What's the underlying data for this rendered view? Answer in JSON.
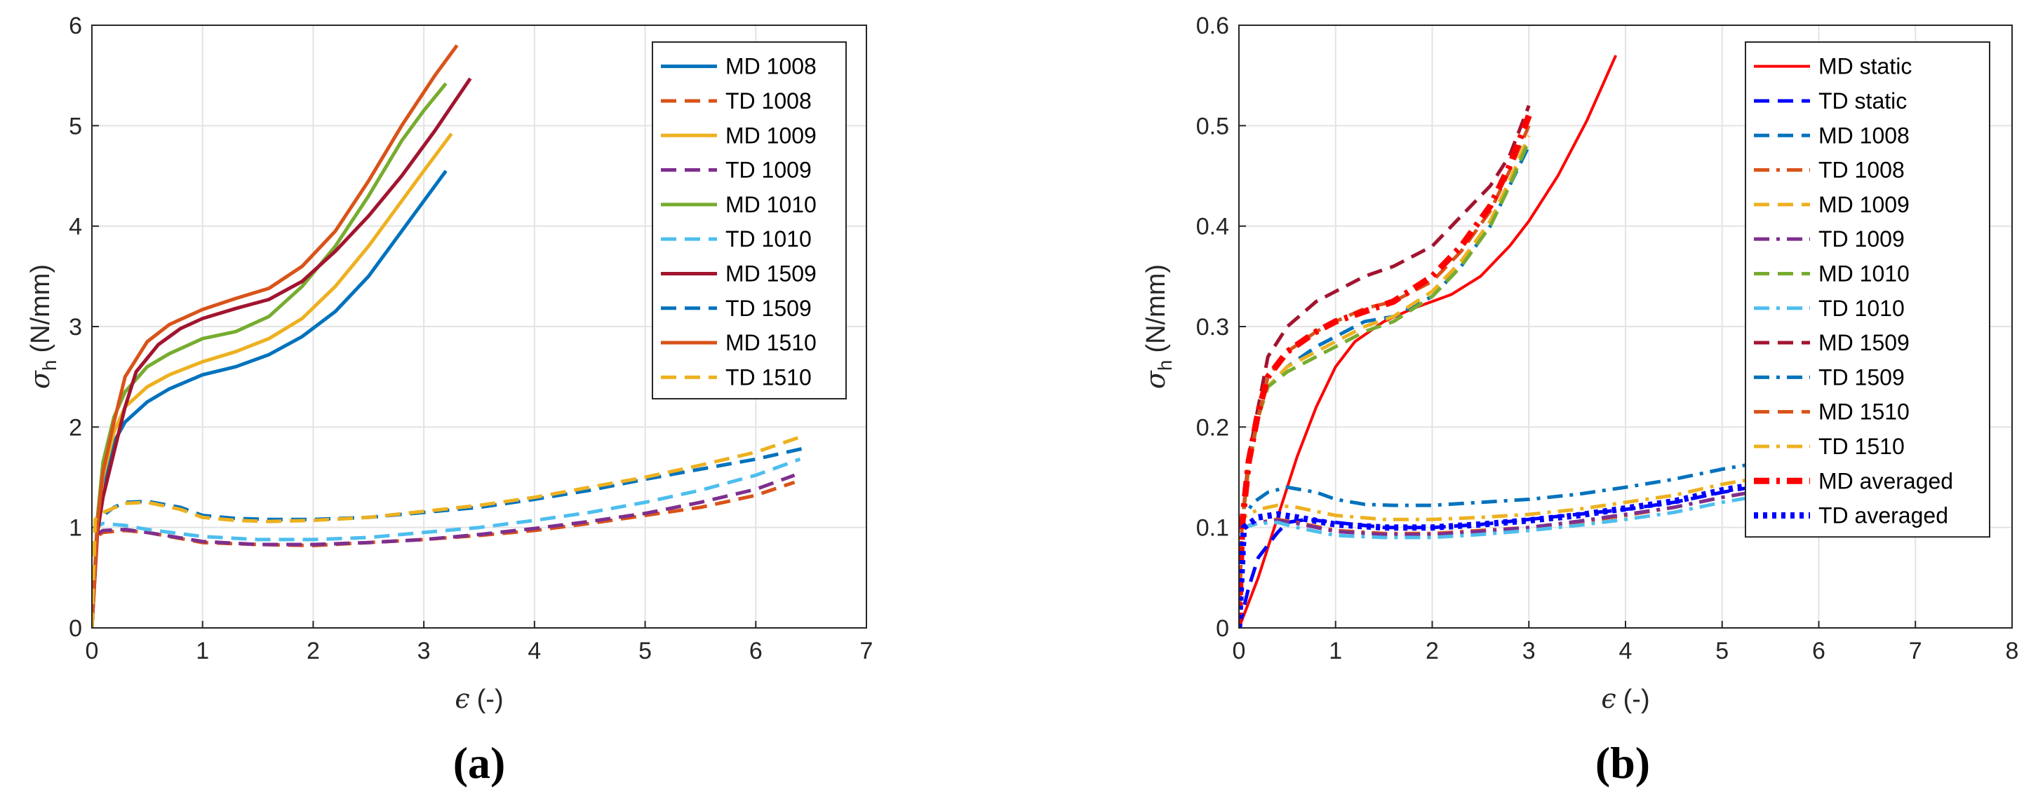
{
  "chart_data": [
    {
      "type": "line",
      "panel_label": "(a)",
      "xlabel_symbol": "ϵ",
      "xlabel_unit": "(-)",
      "ylabel_symbol": "σ",
      "ylabel_subscript": "h",
      "ylabel_unit": "(N/mm)",
      "xlim": [
        0,
        7
      ],
      "ylim": [
        0,
        6
      ],
      "xticks": [
        "0",
        "1",
        "2",
        "3",
        "4",
        "5",
        "6",
        "7"
      ],
      "yticks": [
        "0",
        "1",
        "2",
        "3",
        "4",
        "5",
        "6"
      ],
      "grid": true,
      "legend_position": "top-right",
      "series": [
        {
          "name": "MD 1008",
          "color": "#0072BD",
          "dash": "solid",
          "x": [
            0,
            0.05,
            0.1,
            0.2,
            0.3,
            0.5,
            0.7,
            1.0,
            1.3,
            1.6,
            1.9,
            2.2,
            2.5,
            2.8,
            3.0,
            3.2
          ],
          "y": [
            0,
            1.0,
            1.4,
            1.85,
            2.05,
            2.25,
            2.38,
            2.52,
            2.6,
            2.72,
            2.9,
            3.15,
            3.5,
            3.95,
            4.25,
            4.55
          ]
        },
        {
          "name": "TD 1008",
          "color": "#D95319",
          "dash": "dash",
          "x": [
            0,
            0.03,
            0.1,
            0.3,
            0.5,
            1.0,
            1.5,
            2.0,
            2.5,
            3.0,
            3.5,
            4.0,
            4.5,
            5.0,
            5.5,
            6.0,
            6.35
          ],
          "y": [
            0,
            0.9,
            0.95,
            0.97,
            0.95,
            0.85,
            0.83,
            0.82,
            0.85,
            0.88,
            0.92,
            0.97,
            1.04,
            1.12,
            1.2,
            1.32,
            1.45
          ]
        },
        {
          "name": "MD 1009",
          "color": "#EDB120",
          "dash": "solid",
          "x": [
            0,
            0.05,
            0.1,
            0.2,
            0.3,
            0.5,
            0.7,
            1.0,
            1.3,
            1.6,
            1.9,
            2.2,
            2.5,
            2.8,
            3.0,
            3.25
          ],
          "y": [
            0,
            1.05,
            1.5,
            1.95,
            2.2,
            2.4,
            2.52,
            2.65,
            2.75,
            2.88,
            3.08,
            3.4,
            3.8,
            4.25,
            4.55,
            4.92
          ]
        },
        {
          "name": "TD 1009",
          "color": "#7E2F8E",
          "dash": "dash",
          "x": [
            0,
            0.03,
            0.1,
            0.3,
            0.5,
            1.0,
            1.5,
            2.0,
            2.5,
            3.0,
            3.5,
            4.0,
            4.5,
            5.0,
            5.5,
            6.0,
            6.35
          ],
          "y": [
            0,
            0.92,
            0.97,
            0.98,
            0.95,
            0.86,
            0.83,
            0.83,
            0.85,
            0.88,
            0.93,
            0.99,
            1.06,
            1.14,
            1.25,
            1.38,
            1.52
          ]
        },
        {
          "name": "MD 1010",
          "color": "#77AC30",
          "dash": "solid",
          "x": [
            0,
            0.05,
            0.1,
            0.2,
            0.3,
            0.5,
            0.7,
            1.0,
            1.3,
            1.6,
            1.9,
            2.2,
            2.5,
            2.8,
            3.0,
            3.2
          ],
          "y": [
            0,
            1.1,
            1.65,
            2.1,
            2.35,
            2.6,
            2.73,
            2.88,
            2.95,
            3.1,
            3.4,
            3.8,
            4.3,
            4.85,
            5.15,
            5.42
          ]
        },
        {
          "name": "TD 1010",
          "color": "#4DBEEE",
          "dash": "dash",
          "x": [
            0,
            0.03,
            0.1,
            0.3,
            0.5,
            1.0,
            1.5,
            2.0,
            2.5,
            3.0,
            3.5,
            4.0,
            4.5,
            5.0,
            5.5,
            6.0,
            6.4
          ],
          "y": [
            0,
            1.0,
            1.04,
            1.02,
            0.98,
            0.91,
            0.88,
            0.88,
            0.9,
            0.95,
            1.0,
            1.07,
            1.15,
            1.25,
            1.37,
            1.52,
            1.68
          ]
        },
        {
          "name": "MD 1509",
          "color": "#A2142F",
          "dash": "solid",
          "x": [
            0,
            0.05,
            0.1,
            0.2,
            0.3,
            0.4,
            0.6,
            0.8,
            1.0,
            1.3,
            1.6,
            1.9,
            2.2,
            2.5,
            2.8,
            3.1,
            3.42
          ],
          "y": [
            0,
            0.95,
            1.3,
            1.75,
            2.2,
            2.55,
            2.82,
            2.98,
            3.08,
            3.18,
            3.27,
            3.45,
            3.75,
            4.1,
            4.5,
            4.95,
            5.47
          ]
        },
        {
          "name": "TD 1509",
          "color": "#0072BD",
          "dash": "dash",
          "x": [
            0,
            0.03,
            0.1,
            0.2,
            0.3,
            0.5,
            0.8,
            1.0,
            1.3,
            1.6,
            2.0,
            2.5,
            3.0,
            3.5,
            4.0,
            4.5,
            5.0,
            5.5,
            6.0,
            6.48
          ],
          "y": [
            0,
            1.05,
            1.12,
            1.2,
            1.25,
            1.26,
            1.2,
            1.12,
            1.09,
            1.08,
            1.08,
            1.1,
            1.15,
            1.2,
            1.28,
            1.37,
            1.48,
            1.58,
            1.68,
            1.8
          ]
        },
        {
          "name": "MD 1510",
          "color": "#D95319",
          "dash": "solid",
          "x": [
            0,
            0.05,
            0.1,
            0.2,
            0.3,
            0.5,
            0.7,
            1.0,
            1.3,
            1.6,
            1.9,
            2.2,
            2.5,
            2.8,
            3.1,
            3.3
          ],
          "y": [
            0,
            1.05,
            1.55,
            2.05,
            2.5,
            2.85,
            3.02,
            3.17,
            3.28,
            3.38,
            3.6,
            3.95,
            4.45,
            5.0,
            5.5,
            5.8
          ]
        },
        {
          "name": "TD 1510",
          "color": "#EDB120",
          "dash": "dash",
          "x": [
            0,
            0.03,
            0.1,
            0.3,
            0.5,
            0.8,
            1.0,
            1.3,
            1.6,
            2.0,
            2.5,
            3.0,
            3.5,
            4.0,
            4.5,
            5.0,
            5.5,
            6.0,
            6.4
          ],
          "y": [
            0,
            1.08,
            1.15,
            1.24,
            1.25,
            1.18,
            1.1,
            1.07,
            1.06,
            1.07,
            1.1,
            1.16,
            1.22,
            1.3,
            1.4,
            1.5,
            1.62,
            1.75,
            1.9
          ]
        }
      ]
    },
    {
      "type": "line",
      "panel_label": "(b)",
      "xlabel_symbol": "ϵ",
      "xlabel_unit": "(-)",
      "ylabel_symbol": "σ",
      "ylabel_subscript": "h",
      "ylabel_unit": "(N/mm)",
      "xlim": [
        0,
        8
      ],
      "ylim": [
        0,
        0.6
      ],
      "xticks": [
        "0",
        "1",
        "2",
        "3",
        "4",
        "5",
        "6",
        "7",
        "8"
      ],
      "yticks": [
        "0",
        "0.1",
        "0.2",
        "0.3",
        "0.4",
        "0.5",
        "0.6"
      ],
      "grid": true,
      "legend_position": "top-right",
      "series": [
        {
          "name": "MD static",
          "color": "#FF0000",
          "dash": "solid",
          "width": 4,
          "x": [
            0,
            0.2,
            0.4,
            0.6,
            0.8,
            1.0,
            1.2,
            1.5,
            1.8,
            2.0,
            2.2,
            2.5,
            2.8,
            3.0,
            3.3,
            3.6,
            3.9
          ],
          "y": [
            0,
            0.05,
            0.11,
            0.17,
            0.22,
            0.26,
            0.285,
            0.305,
            0.318,
            0.325,
            0.332,
            0.35,
            0.38,
            0.405,
            0.45,
            0.505,
            0.57
          ]
        },
        {
          "name": "TD static",
          "color": "#0000FF",
          "dash": "dash",
          "width": 5,
          "x": [
            0,
            0.1,
            0.2,
            0.4,
            0.5,
            0.7,
            1.0,
            1.5,
            2.0,
            2.5,
            3.0,
            3.5,
            4.0,
            4.5,
            5.0,
            5.3
          ],
          "y": [
            0,
            0.04,
            0.07,
            0.095,
            0.105,
            0.108,
            0.105,
            0.1,
            0.1,
            0.103,
            0.108,
            0.113,
            0.118,
            0.125,
            0.135,
            0.14
          ]
        },
        {
          "name": "MD 1008",
          "color": "#0072BD",
          "dash": "dash",
          "width": 5,
          "x": [
            0,
            0.03,
            0.1,
            0.2,
            0.3,
            0.5,
            0.8,
            1.0,
            1.3,
            1.6,
            2.0,
            2.3,
            2.6,
            2.8,
            3.0
          ],
          "y": [
            0,
            0.1,
            0.16,
            0.21,
            0.24,
            0.26,
            0.28,
            0.29,
            0.305,
            0.31,
            0.33,
            0.36,
            0.4,
            0.44,
            0.48
          ]
        },
        {
          "name": "TD 1008",
          "color": "#D95319",
          "dash": "dashdot",
          "width": 5,
          "x": [
            0,
            0.05,
            0.2,
            0.4,
            0.6,
            1.0,
            1.5,
            2.0,
            2.5,
            3.0,
            3.5,
            4.0,
            4.5,
            5.0,
            5.3
          ],
          "y": [
            0,
            0.1,
            0.105,
            0.108,
            0.105,
            0.097,
            0.094,
            0.094,
            0.097,
            0.1,
            0.105,
            0.112,
            0.12,
            0.13,
            0.135
          ]
        },
        {
          "name": "MD 1009",
          "color": "#EDB120",
          "dash": "dash",
          "width": 5,
          "x": [
            0,
            0.03,
            0.1,
            0.2,
            0.3,
            0.5,
            0.8,
            1.0,
            1.3,
            1.6,
            2.0,
            2.3,
            2.6,
            2.8,
            3.0
          ],
          "y": [
            0,
            0.1,
            0.16,
            0.21,
            0.24,
            0.26,
            0.275,
            0.285,
            0.3,
            0.31,
            0.335,
            0.365,
            0.405,
            0.445,
            0.49
          ]
        },
        {
          "name": "TD 1009",
          "color": "#7E2F8E",
          "dash": "dashdot",
          "width": 5,
          "x": [
            0,
            0.05,
            0.2,
            0.4,
            0.6,
            1.0,
            1.5,
            2.0,
            2.5,
            3.0,
            3.5,
            4.0,
            4.5,
            5.0,
            5.3
          ],
          "y": [
            0,
            0.1,
            0.105,
            0.107,
            0.104,
            0.096,
            0.093,
            0.093,
            0.096,
            0.1,
            0.106,
            0.113,
            0.12,
            0.13,
            0.135
          ]
        },
        {
          "name": "MD 1010",
          "color": "#77AC30",
          "dash": "dash",
          "width": 5,
          "x": [
            0,
            0.03,
            0.1,
            0.2,
            0.3,
            0.5,
            0.8,
            1.0,
            1.3,
            1.6,
            2.0,
            2.3,
            2.6,
            2.8,
            3.0
          ],
          "y": [
            0,
            0.1,
            0.16,
            0.21,
            0.24,
            0.255,
            0.27,
            0.28,
            0.295,
            0.305,
            0.33,
            0.36,
            0.4,
            0.44,
            0.485
          ]
        },
        {
          "name": "TD 1010",
          "color": "#4DBEEE",
          "dash": "dashdot",
          "width": 5,
          "x": [
            0,
            0.05,
            0.2,
            0.4,
            0.6,
            1.0,
            1.5,
            2.0,
            2.5,
            3.0,
            3.5,
            4.0,
            4.5,
            5.0,
            5.3
          ],
          "y": [
            0,
            0.1,
            0.104,
            0.105,
            0.1,
            0.092,
            0.09,
            0.09,
            0.093,
            0.097,
            0.102,
            0.108,
            0.115,
            0.125,
            0.13
          ]
        },
        {
          "name": "MD 1509",
          "color": "#A2142F",
          "dash": "dash",
          "width": 5,
          "x": [
            0,
            0.03,
            0.1,
            0.2,
            0.3,
            0.5,
            0.8,
            1.0,
            1.3,
            1.6,
            2.0,
            2.3,
            2.6,
            2.8,
            3.0
          ],
          "y": [
            0,
            0.1,
            0.17,
            0.22,
            0.27,
            0.3,
            0.325,
            0.335,
            0.35,
            0.36,
            0.38,
            0.41,
            0.44,
            0.47,
            0.52
          ]
        },
        {
          "name": "TD 1509",
          "color": "#0072BD",
          "dash": "dashdot",
          "width": 5,
          "x": [
            0,
            0.05,
            0.15,
            0.3,
            0.5,
            0.8,
            1.0,
            1.3,
            1.6,
            2.0,
            2.5,
            3.0,
            3.5,
            4.0,
            4.5,
            5.0,
            5.3
          ],
          "y": [
            0,
            0.11,
            0.125,
            0.135,
            0.14,
            0.135,
            0.128,
            0.123,
            0.122,
            0.122,
            0.125,
            0.128,
            0.133,
            0.14,
            0.148,
            0.158,
            0.163
          ]
        },
        {
          "name": "MD 1510",
          "color": "#D95319",
          "dash": "dash",
          "width": 5,
          "x": [
            0,
            0.03,
            0.1,
            0.2,
            0.3,
            0.5,
            0.8,
            1.0,
            1.3,
            1.6,
            2.0,
            2.3,
            2.6,
            2.8,
            3.0
          ],
          "y": [
            0,
            0.1,
            0.165,
            0.21,
            0.25,
            0.275,
            0.295,
            0.305,
            0.318,
            0.325,
            0.345,
            0.375,
            0.415,
            0.455,
            0.5
          ]
        },
        {
          "name": "TD 1510",
          "color": "#EDB120",
          "dash": "dashdot",
          "width": 5,
          "x": [
            0,
            0.05,
            0.2,
            0.4,
            0.6,
            1.0,
            1.5,
            2.0,
            2.5,
            3.0,
            3.5,
            4.0,
            4.5,
            5.0,
            5.3
          ],
          "y": [
            0,
            0.11,
            0.118,
            0.122,
            0.12,
            0.112,
            0.108,
            0.108,
            0.11,
            0.113,
            0.118,
            0.125,
            0.132,
            0.143,
            0.148
          ]
        },
        {
          "name": "MD averaged",
          "color": "#FF0000",
          "dash": "dashdot",
          "width": 9,
          "x": [
            0,
            0.03,
            0.1,
            0.2,
            0.3,
            0.5,
            0.8,
            1.0,
            1.3,
            1.6,
            2.0,
            2.3,
            2.6,
            2.8,
            3.0
          ],
          "y": [
            0,
            0.1,
            0.165,
            0.215,
            0.25,
            0.275,
            0.295,
            0.305,
            0.315,
            0.325,
            0.35,
            0.38,
            0.42,
            0.46,
            0.51
          ]
        },
        {
          "name": "TD averaged",
          "color": "#0000FF",
          "dash": "dot",
          "width": 9,
          "x": [
            0,
            0.05,
            0.2,
            0.4,
            0.6,
            1.0,
            1.5,
            2.0,
            2.5,
            3.0,
            3.5,
            4.0,
            4.5,
            5.0,
            5.3
          ],
          "y": [
            0,
            0.1,
            0.11,
            0.113,
            0.11,
            0.103,
            0.1,
            0.1,
            0.103,
            0.107,
            0.112,
            0.119,
            0.126,
            0.137,
            0.142
          ]
        }
      ]
    }
  ]
}
